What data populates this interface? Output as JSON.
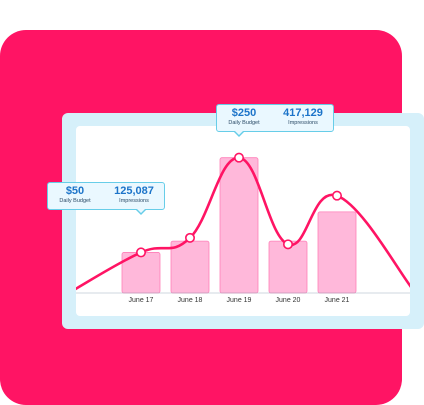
{
  "chart_data": {
    "type": "bar",
    "categories": [
      "June 17",
      "June 18",
      "June 19",
      "June 20",
      "June 21"
    ],
    "values": [
      125087,
      160000,
      417129,
      160000,
      250000
    ],
    "line_values": [
      125087,
      170000,
      417129,
      150000,
      300000
    ],
    "ylim": [
      0,
      450000
    ],
    "title": "",
    "xlabel": "",
    "ylabel": "",
    "grid": false,
    "colors": {
      "bar_fill": "#ffb8da",
      "bar_stroke": "#ff7fb8",
      "line": "#ff1464",
      "point": "#ffffff",
      "baseline": "#9fb0bf"
    },
    "annotations": [
      {
        "category": "June 17",
        "budget": "$50",
        "budget_label": "Daily Budget",
        "impressions": "125,087",
        "impressions_label": "Impressions"
      },
      {
        "category": "June 19",
        "budget": "$250",
        "budget_label": "Daily Budget",
        "impressions": "417,129",
        "impressions_label": "Impressions"
      }
    ]
  },
  "colors": {
    "background_square": "#ff1464",
    "panel": "#d6f0fa",
    "card": "#ffffff",
    "tooltip_text": "#1c74c9"
  }
}
